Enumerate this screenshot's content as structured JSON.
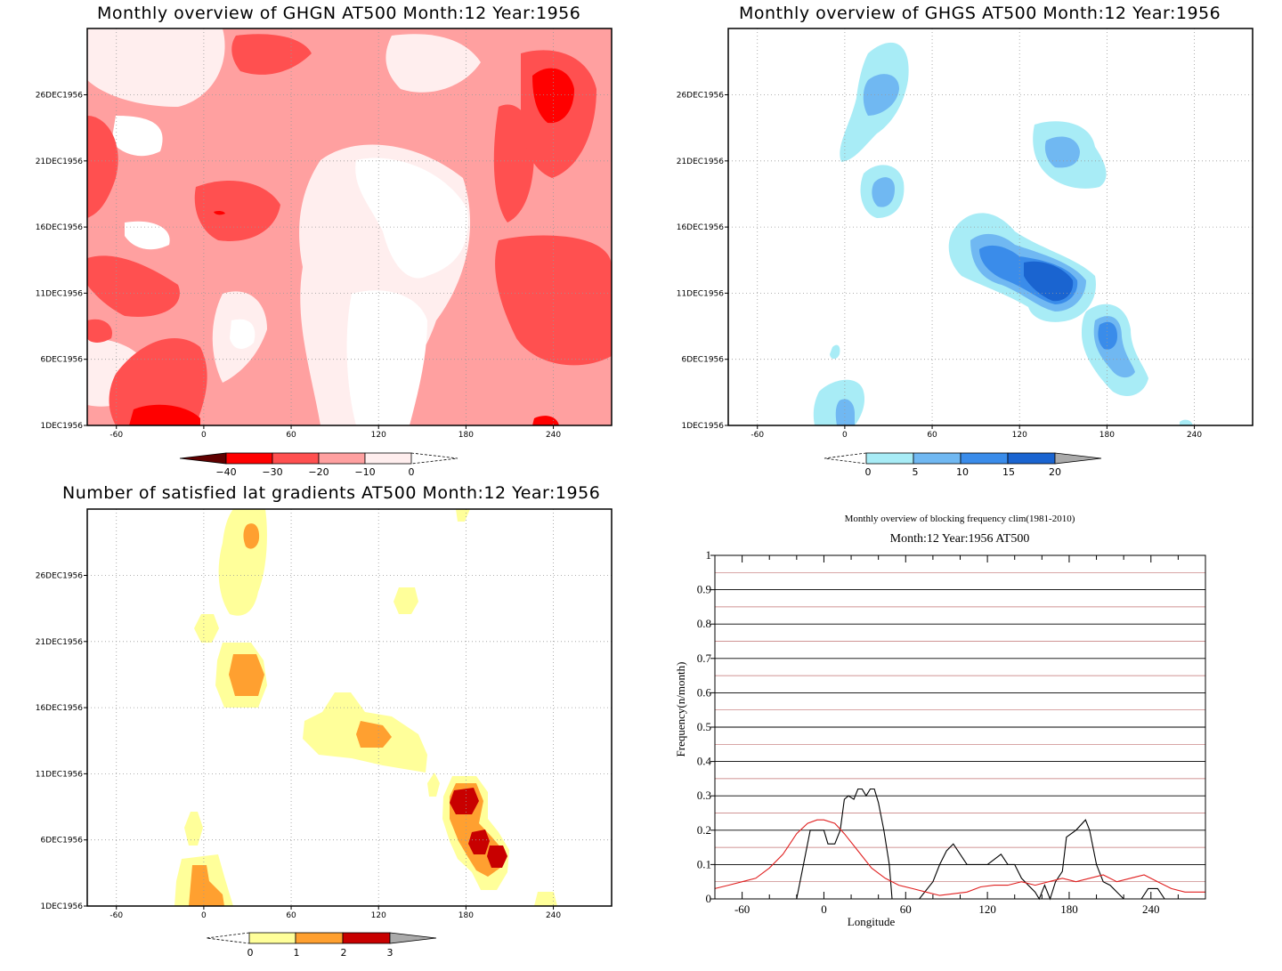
{
  "panels": {
    "ghgn": {
      "title": "Monthly overview of GHGN AT500 Month:12 Year:1956",
      "colorbar": {
        "labels": [
          "−40",
          "−30",
          "−20",
          "−10",
          "0"
        ],
        "colors": [
          "#c00000",
          "#ff0000",
          "#ff5050",
          "#ffa0a0",
          "#ffeeee"
        ]
      }
    },
    "ghgs": {
      "title": "Monthly overview of GHGS AT500 Month:12 Year:1956",
      "colorbar": {
        "labels": [
          "0",
          "5",
          "10",
          "15",
          "20"
        ],
        "colors": [
          "#a8ecf6",
          "#70b8f2",
          "#3a8cea",
          "#1a64d0",
          "#aaaaaa"
        ]
      }
    },
    "gradients": {
      "title": "Number of satisfied lat gradients AT500 Month:12 Year:1956",
      "colorbar": {
        "labels": [
          "0",
          "1",
          "2",
          "3"
        ],
        "colors": [
          "#ffff9a",
          "#ffa030",
          "#c80000",
          "#aaaaaa"
        ]
      }
    },
    "frequency": {
      "title": "Monthly overview of blocking frequency clim(1981-2010)",
      "subtitle": "Month:12 Year:1956  AT500"
    }
  },
  "shared_axes": {
    "x_ticks": [
      "-60",
      "0",
      "60",
      "120",
      "180",
      "240"
    ],
    "y_ticks": [
      "1DEC1956",
      "6DEC1956",
      "11DEC1956",
      "16DEC1956",
      "21DEC1956",
      "26DEC1956"
    ]
  },
  "chart_data": [
    {
      "type": "heatmap",
      "title": "Monthly overview of GHGN AT500 Month:12 Year:1956",
      "x_ticks": [
        -60,
        0,
        60,
        120,
        180,
        240
      ],
      "xlim": [
        -80,
        280
      ],
      "y_ticks": [
        "1DEC1956",
        "6DEC1956",
        "11DEC1956",
        "16DEC1956",
        "21DEC1956",
        "26DEC1956"
      ],
      "levels": [
        -40,
        -30,
        -20,
        -10,
        0
      ],
      "colors": [
        "#c00000",
        "#ff0000",
        "#ff5050",
        "#ffa0a0",
        "#ffeeee",
        "#ffffff"
      ]
    },
    {
      "type": "heatmap",
      "title": "Monthly overview of GHGS AT500 Month:12 Year:1956",
      "x_ticks": [
        -60,
        0,
        60,
        120,
        180,
        240
      ],
      "xlim": [
        -80,
        280
      ],
      "y_ticks": [
        "1DEC1956",
        "6DEC1956",
        "11DEC1956",
        "16DEC1956",
        "21DEC1956",
        "26DEC1956"
      ],
      "levels": [
        0,
        5,
        10,
        15,
        20
      ],
      "colors": [
        "#ffffff",
        "#a8ecf6",
        "#70b8f2",
        "#3a8cea",
        "#1a64d0",
        "#aaaaaa"
      ]
    },
    {
      "type": "heatmap",
      "title": "Number of satisfied lat gradients AT500 Month:12 Year:1956",
      "x_ticks": [
        -60,
        0,
        60,
        120,
        180,
        240
      ],
      "xlim": [
        -80,
        280
      ],
      "y_ticks": [
        "1DEC1956",
        "6DEC1956",
        "11DEC1956",
        "16DEC1956",
        "21DEC1956",
        "26DEC1956"
      ],
      "levels": [
        0,
        1,
        2,
        3
      ],
      "colors": [
        "#ffffff",
        "#ffff9a",
        "#ffa030",
        "#c80000",
        "#aaaaaa"
      ]
    },
    {
      "type": "line",
      "title": "Monthly overview of blocking frequency clim(1981-2010)",
      "subtitle": "Month:12 Year:1956  AT500",
      "xlabel": "Longitude",
      "ylabel": "Frequency(n/month)",
      "xlim": [
        -80,
        280
      ],
      "ylim": [
        0,
        1
      ],
      "x_ticks": [
        -60,
        0,
        60,
        120,
        180,
        240
      ],
      "y_ticks": [
        0,
        0.1,
        0.2,
        0.3,
        0.4,
        0.5,
        0.6,
        0.7,
        0.8,
        0.9,
        1
      ],
      "series": [
        {
          "color": "#000000",
          "points": [
            [
              -20,
              0
            ],
            [
              -15,
              0.1
            ],
            [
              -10,
              0.2
            ],
            [
              -5,
              0.2
            ],
            [
              0,
              0.2
            ],
            [
              3,
              0.16
            ],
            [
              8,
              0.16
            ],
            [
              12,
              0.2
            ],
            [
              15,
              0.29
            ],
            [
              18,
              0.3
            ],
            [
              22,
              0.29
            ],
            [
              25,
              0.32
            ],
            [
              28,
              0.32
            ],
            [
              31,
              0.3
            ],
            [
              34,
              0.32
            ],
            [
              37,
              0.32
            ],
            [
              40,
              0.28
            ],
            [
              44,
              0.2
            ],
            [
              48,
              0.1
            ],
            [
              50,
              0
            ],
            [
              70,
              0
            ],
            [
              80,
              0.05
            ],
            [
              85,
              0.1
            ],
            [
              90,
              0.14
            ],
            [
              95,
              0.16
            ],
            [
              100,
              0.13
            ],
            [
              105,
              0.1
            ],
            [
              120,
              0.1
            ],
            [
              130,
              0.13
            ],
            [
              135,
              0.1
            ],
            [
              140,
              0.1
            ],
            [
              145,
              0.06
            ],
            [
              150,
              0.04
            ],
            [
              155,
              0.02
            ],
            [
              158,
              0
            ],
            [
              162,
              0.04
            ],
            [
              166,
              0
            ],
            [
              170,
              0.05
            ],
            [
              175,
              0.08
            ],
            [
              178,
              0.18
            ],
            [
              185,
              0.2
            ],
            [
              192,
              0.23
            ],
            [
              195,
              0.2
            ],
            [
              200,
              0.1
            ],
            [
              205,
              0.05
            ],
            [
              210,
              0.04
            ],
            [
              215,
              0.02
            ],
            [
              220,
              0
            ],
            [
              233,
              0
            ],
            [
              238,
              0.03
            ],
            [
              245,
              0.03
            ],
            [
              250,
              0
            ]
          ]
        },
        {
          "color": "#e02020",
          "points": [
            [
              -80,
              0.03
            ],
            [
              -70,
              0.04
            ],
            [
              -60,
              0.05
            ],
            [
              -50,
              0.06
            ],
            [
              -40,
              0.09
            ],
            [
              -30,
              0.13
            ],
            [
              -20,
              0.19
            ],
            [
              -12,
              0.22
            ],
            [
              -5,
              0.23
            ],
            [
              0,
              0.23
            ],
            [
              8,
              0.22
            ],
            [
              15,
              0.19
            ],
            [
              25,
              0.14
            ],
            [
              35,
              0.09
            ],
            [
              45,
              0.06
            ],
            [
              55,
              0.04
            ],
            [
              65,
              0.03
            ],
            [
              75,
              0.02
            ],
            [
              85,
              0.01
            ],
            [
              95,
              0.015
            ],
            [
              105,
              0.02
            ],
            [
              115,
              0.035
            ],
            [
              125,
              0.04
            ],
            [
              135,
              0.04
            ],
            [
              145,
              0.05
            ],
            [
              155,
              0.04
            ],
            [
              165,
              0.05
            ],
            [
              175,
              0.06
            ],
            [
              185,
              0.05
            ],
            [
              195,
              0.06
            ],
            [
              205,
              0.07
            ],
            [
              215,
              0.05
            ],
            [
              225,
              0.06
            ],
            [
              235,
              0.07
            ],
            [
              245,
              0.05
            ],
            [
              255,
              0.03
            ],
            [
              265,
              0.02
            ],
            [
              280,
              0.02
            ]
          ]
        }
      ]
    }
  ]
}
